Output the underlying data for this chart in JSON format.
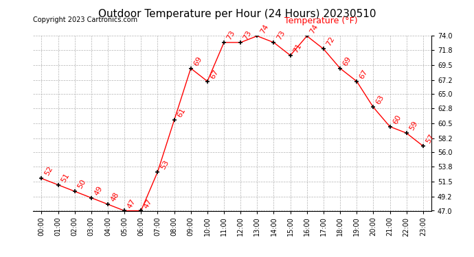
{
  "title": "Outdoor Temperature per Hour (24 Hours) 20230510",
  "copyright_text": "Copyright 2023 Cartronics.com",
  "legend_text": "Temperature (°F)",
  "hours": [
    0,
    1,
    2,
    3,
    4,
    5,
    6,
    7,
    8,
    9,
    10,
    11,
    12,
    13,
    14,
    15,
    16,
    17,
    18,
    19,
    20,
    21,
    22,
    23
  ],
  "hour_labels": [
    "00:00",
    "01:00",
    "02:00",
    "03:00",
    "04:00",
    "05:00",
    "06:00",
    "07:00",
    "08:00",
    "09:00",
    "10:00",
    "11:00",
    "12:00",
    "13:00",
    "14:00",
    "15:00",
    "16:00",
    "17:00",
    "18:00",
    "19:00",
    "20:00",
    "21:00",
    "22:00",
    "23:00"
  ],
  "temperatures": [
    52,
    51,
    50,
    49,
    48,
    47,
    47,
    53,
    61,
    69,
    67,
    73,
    73,
    74,
    73,
    71,
    74,
    72,
    69,
    67,
    63,
    60,
    59,
    57
  ],
  "ylim": [
    47.0,
    74.0
  ],
  "yticks": [
    47.0,
    49.2,
    51.5,
    53.8,
    56.0,
    58.2,
    60.5,
    62.8,
    65.0,
    67.2,
    69.5,
    71.8,
    74.0
  ],
  "line_color": "red",
  "marker_color": "black",
  "label_color": "red",
  "title_fontsize": 11,
  "copyright_fontsize": 7,
  "tick_fontsize": 7,
  "annotation_fontsize": 8,
  "legend_fontsize": 9,
  "background_color": "white",
  "grid_color": "#aaaaaa",
  "figwidth": 6.9,
  "figheight": 3.75,
  "dpi": 100
}
